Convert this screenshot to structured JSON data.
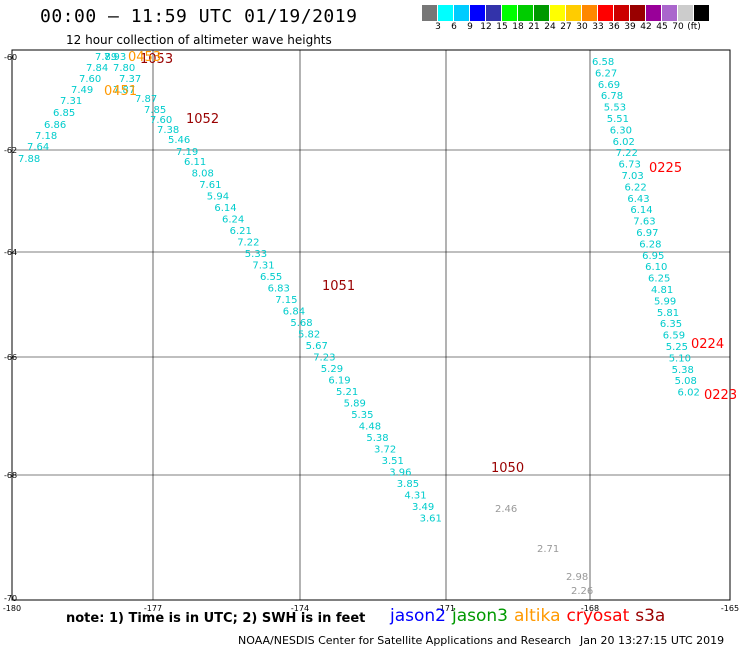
{
  "title": "00:00 – 11:59 UTC 01/19/2019",
  "subtitle": "12 hour collection of altimeter wave heights",
  "legend": {
    "colors": [
      "#777777",
      "#00ffff",
      "#00ccff",
      "#0000ff",
      "#3333aa",
      "#00ff00",
      "#00cc00",
      "#009900",
      "#ffff00",
      "#ffcc00",
      "#ff8800",
      "#ff0000",
      "#cc0000",
      "#990000",
      "#990099",
      "#aa66cc",
      "#cccccc",
      "#000000"
    ],
    "labels": [
      "3",
      "6",
      "9",
      "12",
      "15",
      "18",
      "21",
      "24",
      "27",
      "30",
      "33",
      "36",
      "39",
      "42",
      "45",
      "70",
      "(ft)"
    ]
  },
  "axes": {
    "x_ticks": [
      "-180",
      "-177",
      "-174",
      "-171",
      "-168",
      "-165"
    ],
    "y_ticks": [
      "-60",
      "-62",
      "-64",
      "-66",
      "-68",
      "-70"
    ]
  },
  "tracks": [
    {
      "name": "track-west-1053",
      "color": "#00cccc",
      "values": [
        "7.88",
        "7.64",
        "7.18",
        "6.86",
        "6.85",
        "7.31",
        "7.49",
        "7.60",
        "7.84",
        "7.89",
        "7.93",
        "7.80",
        "7.37",
        "7.87",
        "7.87",
        "7.85",
        "7.60",
        "7.38",
        "5.46",
        "7.19",
        "6.11",
        "8.08",
        "7.61",
        "5.94",
        "6.14",
        "6.24",
        "6.21",
        "7.22",
        "5.33",
        "7.31",
        "6.55",
        "6.83",
        "7.15",
        "6.84",
        "5.68",
        "5.82",
        "5.67",
        "7.23",
        "5.29",
        "6.19",
        "5.21",
        "5.89",
        "5.35",
        "4.48",
        "5.38",
        "3.72",
        "3.51",
        "3.96",
        "3.85",
        "4.31",
        "3.49",
        "3.61"
      ]
    },
    {
      "name": "track-west-gray",
      "color": "#999999",
      "values": [
        "2.46",
        "2.71",
        "2.98",
        "2.26"
      ]
    },
    {
      "name": "track-east",
      "color": "#00cccc",
      "values": [
        "6.58",
        "6.27",
        "6.69",
        "6.78",
        "5.53",
        "5.51",
        "6.30",
        "6.02",
        "7.22",
        "6.73",
        "7.03",
        "6.22",
        "6.43",
        "6.14",
        "7.63",
        "6.97",
        "6.28",
        "6.95",
        "6.10",
        "6.25",
        "4.81",
        "5.99",
        "5.81",
        "6.35",
        "6.59",
        "5.25",
        "5.10",
        "5.38",
        "5.08",
        "6.02"
      ]
    }
  ],
  "time_labels": [
    {
      "text": "1053",
      "color": "#990000"
    },
    {
      "text": "1052",
      "color": "#990000"
    },
    {
      "text": "1051",
      "color": "#990000"
    },
    {
      "text": "1050",
      "color": "#990000"
    },
    {
      "text": "0453",
      "color": "#ff9900"
    },
    {
      "text": "0451",
      "color": "#ff9900"
    },
    {
      "text": "0225",
      "color": "#ff0000"
    },
    {
      "text": "0224",
      "color": "#ff0000"
    },
    {
      "text": "0223",
      "color": "#ff0000"
    }
  ],
  "note": "note: 1) Time is in UTC; 2) SWH is in feet",
  "satellites": [
    {
      "name": "jason2",
      "color": "#0000ff"
    },
    {
      "name": "jason3",
      "color": "#009900"
    },
    {
      "name": "altika",
      "color": "#ff9900"
    },
    {
      "name": "cryosat",
      "color": "#ff0000"
    },
    {
      "name": "s3a",
      "color": "#990000"
    }
  ],
  "credit": "NOAA/NESDIS Center for Satellite Applications and Research",
  "timestamp": "Jan 20 13:27:15 UTC 2019"
}
